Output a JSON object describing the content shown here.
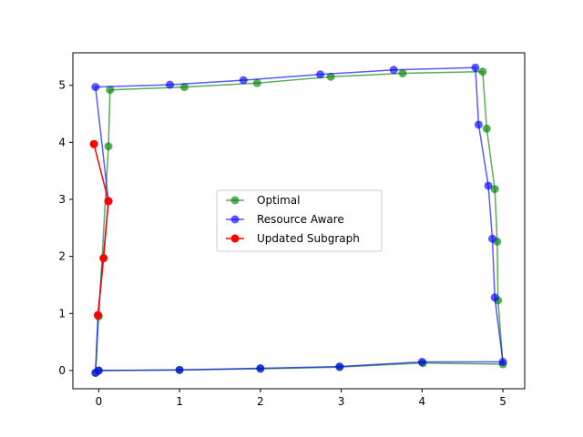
{
  "chart_data": {
    "type": "line",
    "title": "",
    "xlabel": "",
    "ylabel": "",
    "xlim": [
      -0.32,
      5.27
    ],
    "ylim": [
      -0.32,
      5.57
    ],
    "x_ticks": [
      0,
      1,
      2,
      3,
      4,
      5
    ],
    "y_ticks": [
      0,
      1,
      2,
      3,
      4,
      5
    ],
    "x_tick_labels": [
      "0",
      "1",
      "2",
      "3",
      "4",
      "5"
    ],
    "y_tick_labels": [
      "0",
      "1",
      "2",
      "3",
      "4",
      "5"
    ],
    "grid": false,
    "legend": {
      "placement": "center"
    },
    "series": [
      {
        "name": "Optimal",
        "color": "#008000",
        "alpha": 0.65,
        "marker": "circle",
        "x": [
          -0.04,
          0.0,
          0.12,
          0.14,
          1.06,
          1.96,
          2.87,
          3.76,
          4.75,
          4.8,
          4.9,
          4.93,
          4.94,
          5.0,
          4.01,
          2.98,
          2.0,
          1.0,
          0.0
        ],
        "y": [
          -0.04,
          0.95,
          3.93,
          4.92,
          4.97,
          5.04,
          5.15,
          5.21,
          5.24,
          4.24,
          3.18,
          2.26,
          1.23,
          0.11,
          0.13,
          0.06,
          0.03,
          0.01,
          0.0
        ]
      },
      {
        "name": "Resource Aware",
        "color": "#0000ff",
        "alpha": 0.65,
        "marker": "circle",
        "x": [
          -0.04,
          -0.01,
          0.12,
          -0.04,
          0.88,
          1.79,
          2.74,
          3.65,
          4.66,
          4.7,
          4.82,
          4.87,
          4.9,
          5.0,
          4.0,
          2.98,
          2.0,
          1.0,
          0.0
        ],
        "y": [
          -0.04,
          0.97,
          2.97,
          4.97,
          5.01,
          5.09,
          5.19,
          5.27,
          5.31,
          4.31,
          3.24,
          2.31,
          1.28,
          0.15,
          0.15,
          0.07,
          0.04,
          0.01,
          0.0
        ]
      },
      {
        "name": "Updated Subgraph",
        "color": "#ff0000",
        "alpha": 1.0,
        "marker": "circle",
        "x": [
          -0.06,
          0.12,
          0.06,
          -0.01
        ],
        "y": [
          3.97,
          2.97,
          1.97,
          0.97
        ]
      }
    ]
  }
}
